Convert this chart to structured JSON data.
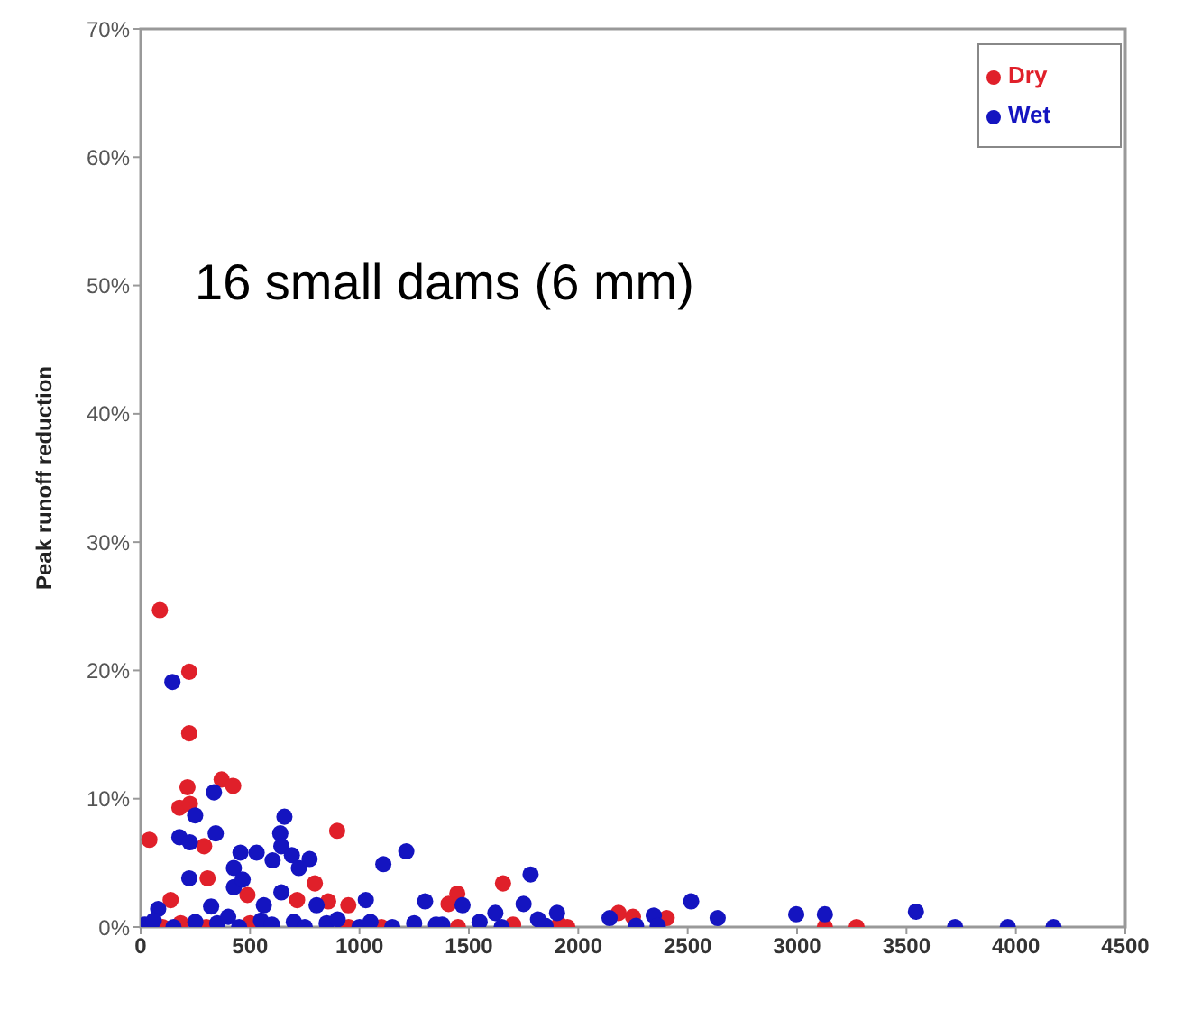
{
  "chart_data": {
    "type": "scatter",
    "ylabel": "Peak runoff reduction",
    "annotations": [
      "16 small dams (6 mm)"
    ],
    "xlim": [
      0,
      4500
    ],
    "xticks": [
      0,
      500,
      1000,
      1500,
      2000,
      2500,
      3000,
      3500,
      4000,
      4500
    ],
    "ylim": [
      0,
      70
    ],
    "yticks": [
      {
        "value": 0,
        "label": "0%"
      },
      {
        "value": 10,
        "label": "10%"
      },
      {
        "value": 20,
        "label": "20%"
      },
      {
        "value": 30,
        "label": "30%"
      },
      {
        "value": 40,
        "label": "40%"
      },
      {
        "value": 50,
        "label": "50%"
      },
      {
        "value": 60,
        "label": "60%"
      },
      {
        "value": 70,
        "label": "70%"
      }
    ],
    "grid": false,
    "legend": "top right",
    "marker": "circle",
    "series": [
      {
        "name": "Dry",
        "color": "#e0202a",
        "x": [
          88,
          222,
          222,
          214,
          370,
          423,
          177,
          225,
          40,
          290,
          306,
          898,
          488,
          715,
          796,
          857,
          949,
          1447,
          137,
          183,
          1656,
          1407,
          2184,
          2250,
          2404,
          1702,
          1913,
          3127,
          3272,
          100,
          300,
          500,
          950,
          1100,
          1450,
          1950
        ],
        "values": [
          24.7,
          19.9,
          15.1,
          10.9,
          11.5,
          11,
          9.3,
          9.6,
          6.8,
          6.3,
          3.8,
          7.5,
          2.5,
          2.1,
          3.4,
          2,
          1.7,
          2.6,
          2.1,
          0.3,
          3.4,
          1.8,
          1.1,
          0.8,
          0.7,
          0.2,
          0.2,
          0,
          0,
          0,
          0,
          0.3,
          0,
          0,
          0,
          0
        ]
      },
      {
        "name": "Wet",
        "color": "#1414c0",
        "x": [
          145,
          335,
          249,
          177,
          225,
          343,
          222,
          657,
          638,
          643,
          456,
          530,
          603,
          691,
          772,
          723,
          426,
          426,
          466,
          1109,
          1214,
          643,
          804,
          1029,
          1300,
          322,
          80,
          563,
          1782,
          1750,
          1471,
          1903,
          2516,
          2637,
          2143,
          2345,
          2264,
          2363,
          1816,
          1621,
          1549,
          1378,
          2996,
          3127,
          3543,
          3722,
          3963,
          4172,
          20,
          60,
          150,
          250,
          350,
          400,
          450,
          550,
          600,
          700,
          750,
          850,
          900,
          1000,
          1050,
          1150,
          1250,
          1350,
          1650,
          1850
        ],
        "values": [
          19.1,
          10.5,
          8.7,
          7,
          6.6,
          7.3,
          3.8,
          8.6,
          7.3,
          6.3,
          5.8,
          5.8,
          5.2,
          5.6,
          5.3,
          4.6,
          4.6,
          3.1,
          3.7,
          4.9,
          5.9,
          2.7,
          1.7,
          2.1,
          2,
          1.6,
          1.4,
          1.7,
          4.1,
          1.8,
          1.7,
          1.1,
          2,
          0.7,
          0.7,
          0.9,
          0.1,
          0.1,
          0.6,
          1.1,
          0.4,
          0.2,
          1,
          1,
          1.2,
          0,
          0,
          0,
          0.2,
          0.5,
          0,
          0.4,
          0.3,
          0.8,
          0,
          0.5,
          0.2,
          0.4,
          0,
          0.3,
          0.6,
          0,
          0.4,
          0,
          0.3,
          0.2,
          0,
          0.1
        ]
      }
    ]
  }
}
